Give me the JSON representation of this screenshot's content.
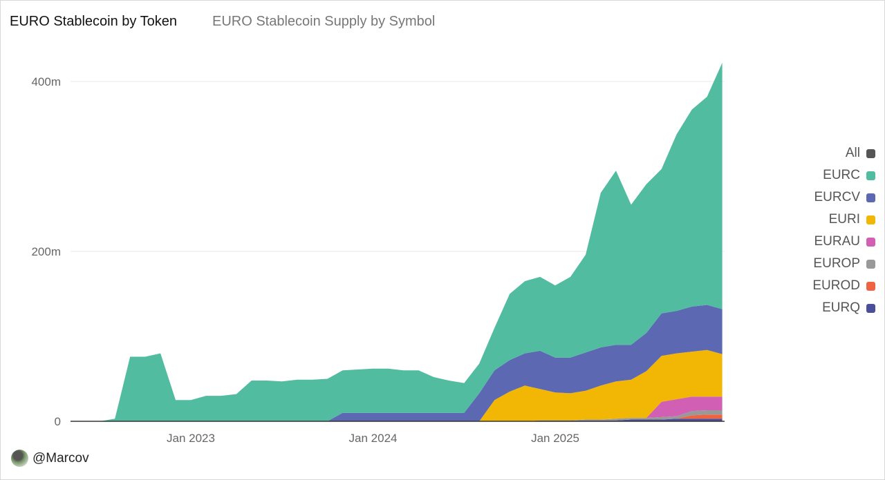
{
  "header": {
    "title": "EURO Stablecoin by Token",
    "subtitle": "EURO Stablecoin Supply by Symbol"
  },
  "footer": {
    "handle": "@Marcov"
  },
  "chart_data": {
    "type": "area",
    "stacked": true,
    "title": "EURO Stablecoin by Token",
    "subtitle": "EURO Stablecoin Supply by Symbol",
    "xlabel": "",
    "ylabel": "",
    "ylim": [
      0,
      430
    ],
    "yticks": [
      {
        "value": 0,
        "label": "0"
      },
      {
        "value": 200,
        "label": "200m"
      },
      {
        "value": 400,
        "label": "400m"
      }
    ],
    "xticks": [
      {
        "value": "2023-01",
        "label": "Jan 2023"
      },
      {
        "value": "2024-01",
        "label": "Jan 2024"
      },
      {
        "value": "2025-01",
        "label": "Jan 2025"
      }
    ],
    "legend_position": "right",
    "legend": [
      {
        "name": "All",
        "color": "#555555"
      }
    ],
    "x": [
      "2022-05",
      "2022-06",
      "2022-07",
      "2022-08",
      "2022-09",
      "2022-10",
      "2022-11",
      "2022-12",
      "2023-01",
      "2023-02",
      "2023-03",
      "2023-04",
      "2023-05",
      "2023-06",
      "2023-07",
      "2023-08",
      "2023-09",
      "2023-10",
      "2023-11",
      "2023-12",
      "2024-01",
      "2024-02",
      "2024-03",
      "2024-04",
      "2024-05",
      "2024-06",
      "2024-07",
      "2024-08",
      "2024-09",
      "2024-10",
      "2024-11",
      "2024-12",
      "2025-01",
      "2025-02",
      "2025-03",
      "2025-04",
      "2025-05",
      "2025-06",
      "2025-07",
      "2025-08",
      "2025-09",
      "2025-10",
      "2025-11",
      "2025-12"
    ],
    "series": [
      {
        "name": "EURQ",
        "color": "#4b4f9a",
        "values": [
          0,
          0,
          0,
          0,
          0,
          0,
          0,
          0,
          0,
          0,
          0,
          0,
          0,
          0,
          0,
          0,
          0,
          0,
          0,
          0,
          0,
          0,
          0,
          0,
          0,
          0,
          0,
          0,
          0,
          0,
          0,
          1,
          1,
          1,
          1,
          1,
          1,
          2,
          2,
          2,
          3,
          3,
          3,
          3
        ]
      },
      {
        "name": "EUROD",
        "color": "#ee6342",
        "values": [
          0,
          0,
          0,
          0,
          0,
          0,
          0,
          0,
          0,
          0,
          0,
          0,
          0,
          0,
          0,
          0,
          0,
          0,
          0,
          0,
          0,
          0,
          0,
          0,
          0,
          0,
          0,
          0,
          0,
          0,
          0,
          0,
          0,
          0,
          0,
          0,
          0,
          0,
          0,
          0,
          0,
          4,
          5,
          5
        ]
      },
      {
        "name": "EUROP",
        "color": "#999999",
        "values": [
          0,
          0,
          0,
          0,
          0,
          0,
          0,
          0,
          0,
          0,
          0,
          0,
          0,
          0,
          0,
          0,
          0,
          0,
          0,
          0,
          0,
          0,
          0,
          0,
          0,
          0,
          0,
          0,
          0,
          0,
          0,
          0,
          0,
          0,
          1,
          1,
          2,
          2,
          2,
          3,
          3,
          5,
          5,
          5
        ]
      },
      {
        "name": "EURAU",
        "color": "#d160b4",
        "values": [
          0,
          0,
          0,
          0,
          0,
          0,
          0,
          0,
          0,
          0,
          0,
          0,
          0,
          0,
          0,
          0,
          0,
          0,
          0,
          0,
          0,
          0,
          0,
          0,
          0,
          0,
          0,
          0,
          0,
          0,
          0,
          0,
          0,
          0,
          0,
          0,
          0,
          0,
          0,
          18,
          20,
          17,
          16,
          16
        ]
      },
      {
        "name": "EURI",
        "color": "#f2b705",
        "values": [
          0,
          0,
          0,
          0,
          0,
          0,
          0,
          0,
          0,
          0,
          0,
          0,
          0,
          0,
          0,
          0,
          0,
          0,
          0,
          0,
          0,
          0,
          0,
          0,
          0,
          0,
          0,
          0,
          25,
          35,
          42,
          37,
          33,
          32,
          34,
          40,
          44,
          45,
          55,
          54,
          54,
          53,
          55,
          50
        ]
      },
      {
        "name": "EURCV",
        "color": "#5d68b3",
        "values": [
          0,
          0,
          0,
          0,
          0,
          0,
          0,
          0,
          0,
          0,
          0,
          0,
          0,
          0,
          0,
          0,
          0,
          0,
          10,
          10,
          10,
          10,
          10,
          10,
          10,
          10,
          10,
          33,
          35,
          37,
          38,
          45,
          41,
          42,
          45,
          45,
          43,
          41,
          45,
          50,
          50,
          53,
          53,
          53
        ]
      },
      {
        "name": "EURC",
        "color": "#51bc9f",
        "values": [
          0,
          0,
          0,
          3,
          76,
          76,
          80,
          25,
          25,
          30,
          30,
          32,
          48,
          48,
          47,
          49,
          49,
          50,
          50,
          51,
          52,
          52,
          50,
          50,
          42,
          38,
          35,
          35,
          50,
          78,
          85,
          87,
          85,
          95,
          115,
          182,
          205,
          165,
          175,
          170,
          208,
          232,
          245,
          290
        ]
      }
    ]
  }
}
